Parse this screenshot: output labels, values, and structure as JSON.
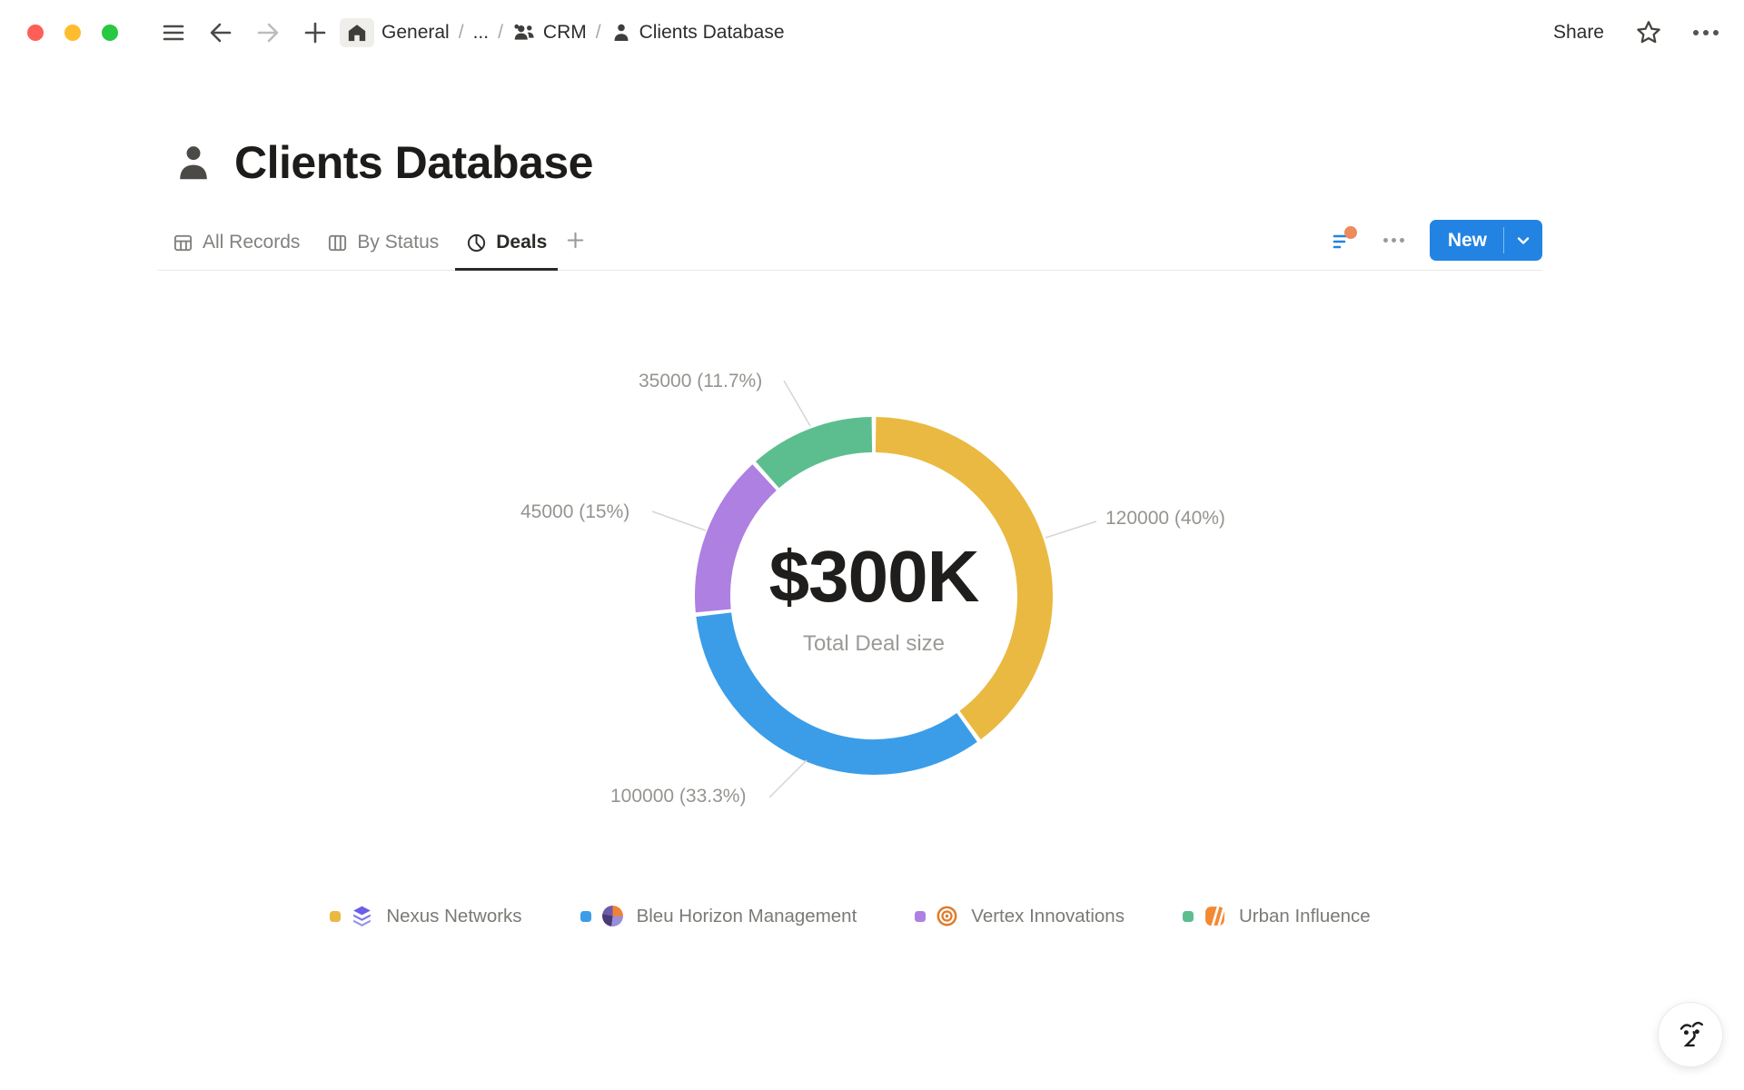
{
  "window": {
    "traffic_lights": [
      "close",
      "minimize",
      "zoom"
    ],
    "breadcrumb": {
      "separator": "/",
      "items": [
        {
          "label": "General",
          "icon": null
        },
        {
          "label": "...",
          "icon": null
        },
        {
          "label": "CRM",
          "icon": "people-icon"
        },
        {
          "label": "Clients Database",
          "icon": "person-icon"
        }
      ]
    },
    "share_label": "Share"
  },
  "page": {
    "icon": "person-icon",
    "title": "Clients Database"
  },
  "tabs": {
    "items": [
      {
        "label": "All Records",
        "icon": "table-icon",
        "active": false
      },
      {
        "label": "By Status",
        "icon": "board-icon",
        "active": false
      },
      {
        "label": "Deals",
        "icon": "pie-chart-icon",
        "active": true
      }
    ],
    "new_button_label": "New"
  },
  "chart_data": {
    "type": "pie",
    "donut": true,
    "center_value": "$300K",
    "center_label": "Total Deal size",
    "total": 300000,
    "start_angle_deg": -90,
    "direction": "clockwise",
    "legend_position": "bottom",
    "series": [
      {
        "name": "Nexus Networks",
        "value": 120000,
        "percent": 40,
        "display_label": "120000 (40%)",
        "color": "#E9B941"
      },
      {
        "name": "Bleu Horizon Management",
        "value": 100000,
        "percent": 33.3,
        "display_label": "100000 (33.3%)",
        "color": "#3B9DE8"
      },
      {
        "name": "Vertex Innovations",
        "value": 45000,
        "percent": 15,
        "display_label": "45000 (15%)",
        "color": "#AE80E2"
      },
      {
        "name": "Urban Influence",
        "value": 35000,
        "percent": 11.7,
        "display_label": "35000 (11.7%)",
        "color": "#5CBE8F"
      }
    ]
  },
  "ui_colors": {
    "accent_blue": "#2383E2",
    "notification_dot_orange": "#EC8B5B",
    "traffic_red": "#FE5F57",
    "traffic_yellow": "#FEBC2E",
    "traffic_green": "#28C840"
  }
}
